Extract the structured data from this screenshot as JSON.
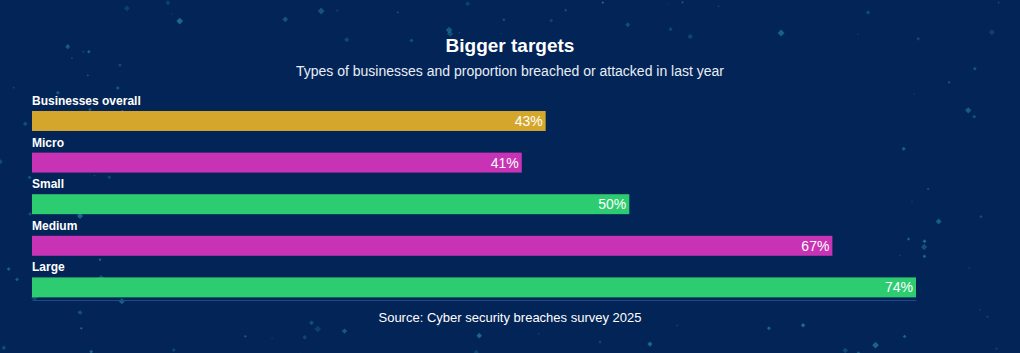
{
  "chart_data": {
    "type": "bar",
    "orientation": "horizontal",
    "title": "Bigger targets",
    "subtitle": "Types of businesses and proportion breached or attacked in last year",
    "categories": [
      "Businesses overall",
      "Micro",
      "Small",
      "Medium",
      "Large"
    ],
    "values": [
      43,
      41,
      50,
      67,
      74
    ],
    "value_labels": [
      "43%",
      "41%",
      "50%",
      "67%",
      "74%"
    ],
    "colors": [
      "#d4a72c",
      "#c832b4",
      "#2ecc71",
      "#c832b4",
      "#2ecc71"
    ],
    "xlim": [
      0,
      74
    ],
    "tick_labels": false,
    "data_labels": true,
    "source": "Source: Cyber security breaches survey 2025"
  }
}
